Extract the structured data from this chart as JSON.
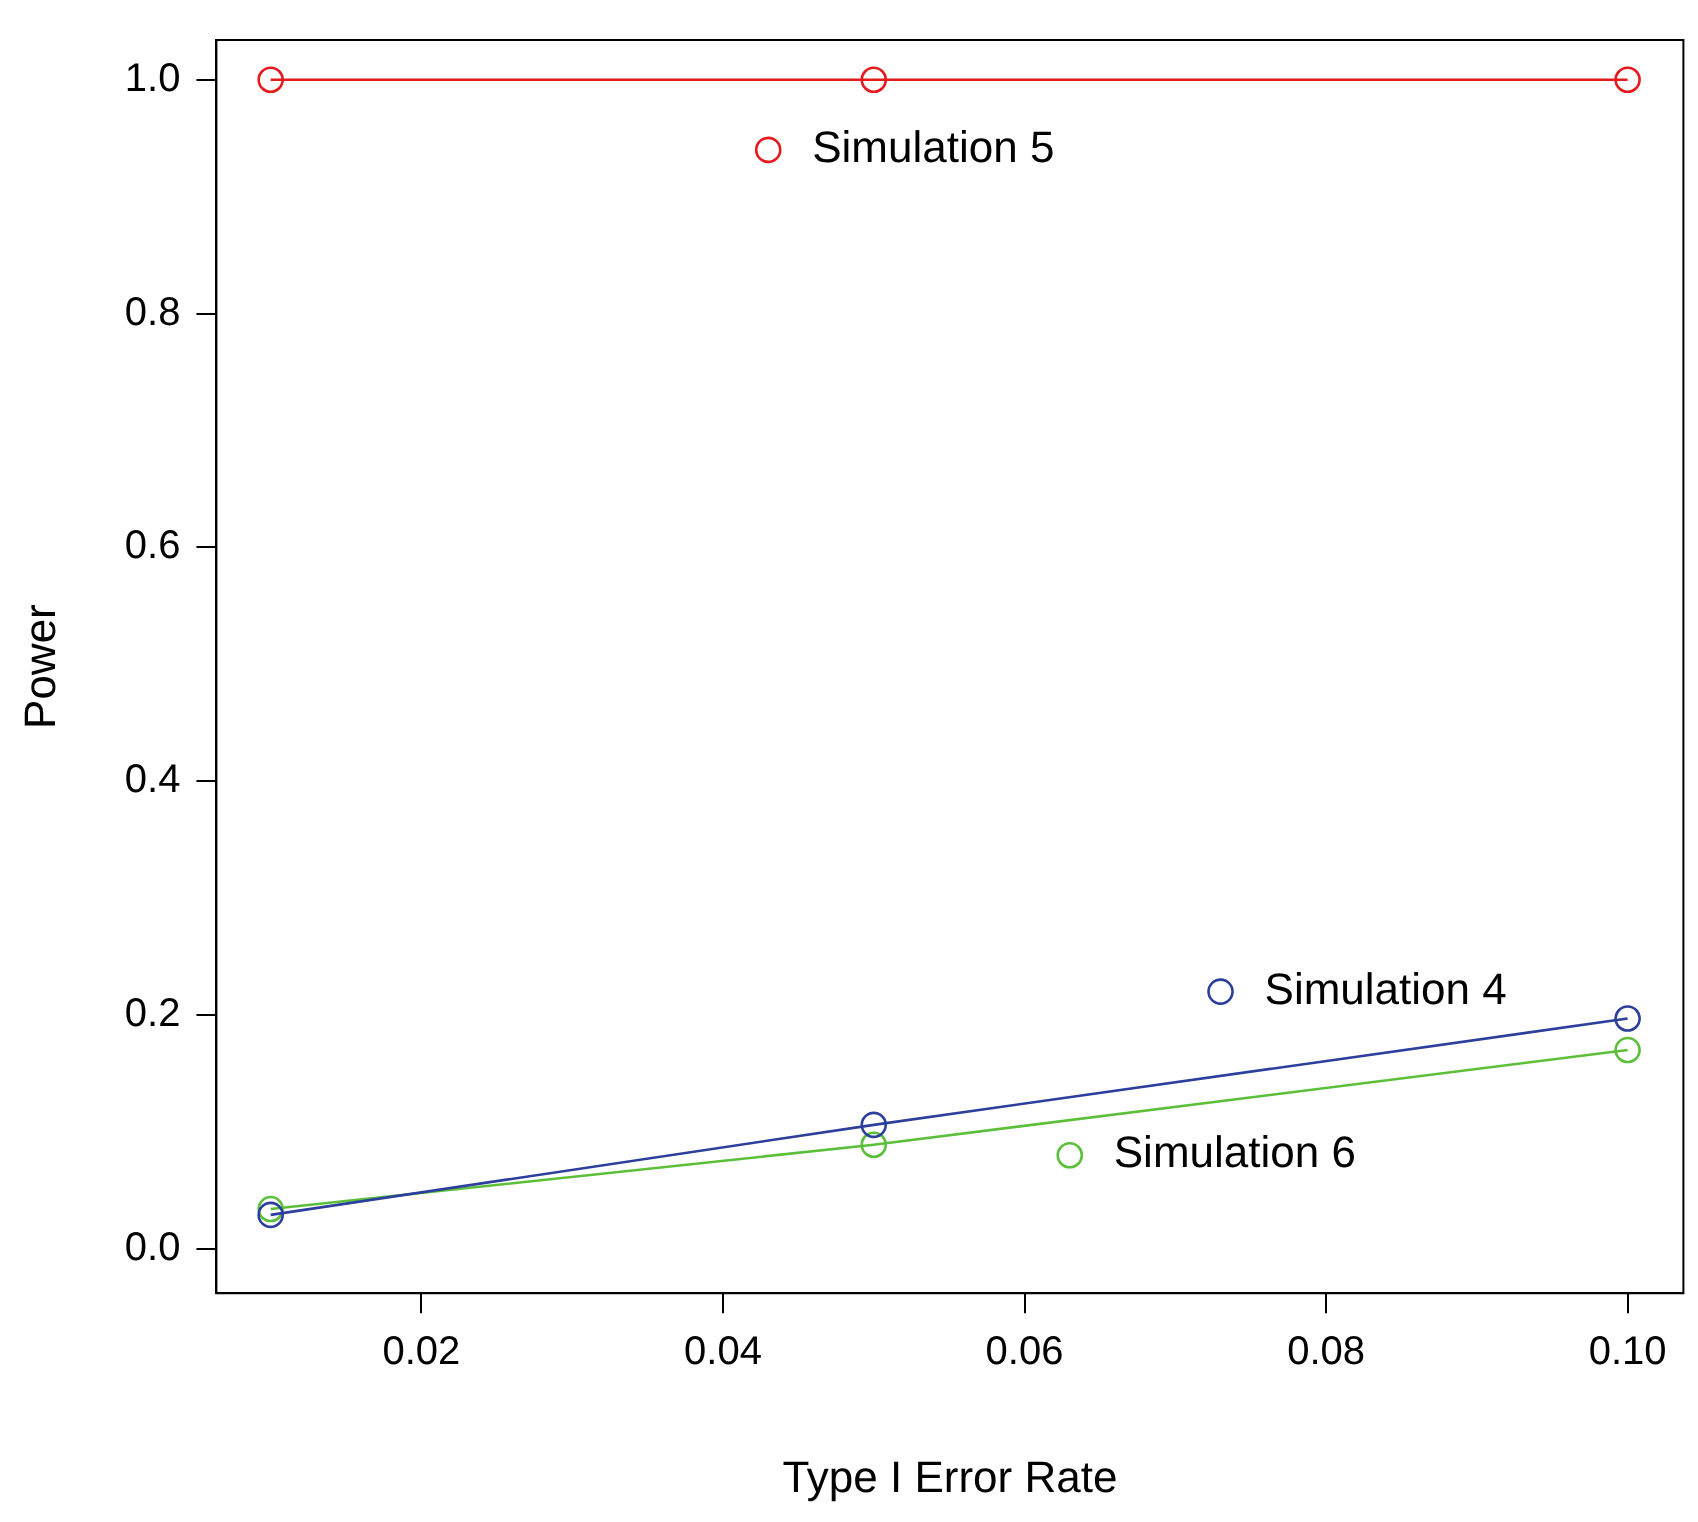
{
  "chart_data": {
    "type": "line",
    "xlabel": "Type I Error Rate",
    "ylabel": "Power",
    "x": [
      0.01,
      0.05,
      0.1
    ],
    "series": [
      {
        "color": "#e41a1c",
        "values": [
          1,
          1,
          1
        ]
      },
      {
        "color": "#2c3f9c",
        "values": [
          0.029,
          0.106,
          0.197
        ]
      },
      {
        "color": "#5bbf3a",
        "values": [
          0.034,
          0.089,
          0.17
        ]
      }
    ],
    "annotations": [
      {
        "text": "Simulation 5",
        "x": 0.043,
        "y": 0.94
      },
      {
        "text": "Simulation 4",
        "x": 0.073,
        "y": 0.22
      },
      {
        "text": "Simulation 6",
        "x": 0.063,
        "y": 0.08
      }
    ],
    "xlim": [
      0.0064,
      0.1037
    ],
    "ylim": [
      -0.038,
      1.034
    ],
    "xticks": [
      0.02,
      0.04,
      0.06,
      0.08,
      {
        "value": 0.1,
        "label": "0.10"
      }
    ],
    "yticks": [
      {
        "value": 0,
        "label": "0.0"
      },
      {
        "value": 0.2,
        "label": "0.2"
      },
      {
        "value": 0.4,
        "label": "0.4"
      },
      {
        "value": 0.6,
        "label": "0.6"
      },
      {
        "value": 0.8,
        "label": "0.8"
      },
      {
        "value": 1,
        "label": "1.0"
      }
    ],
    "marker": "circle",
    "grid": false,
    "legend": false
  }
}
